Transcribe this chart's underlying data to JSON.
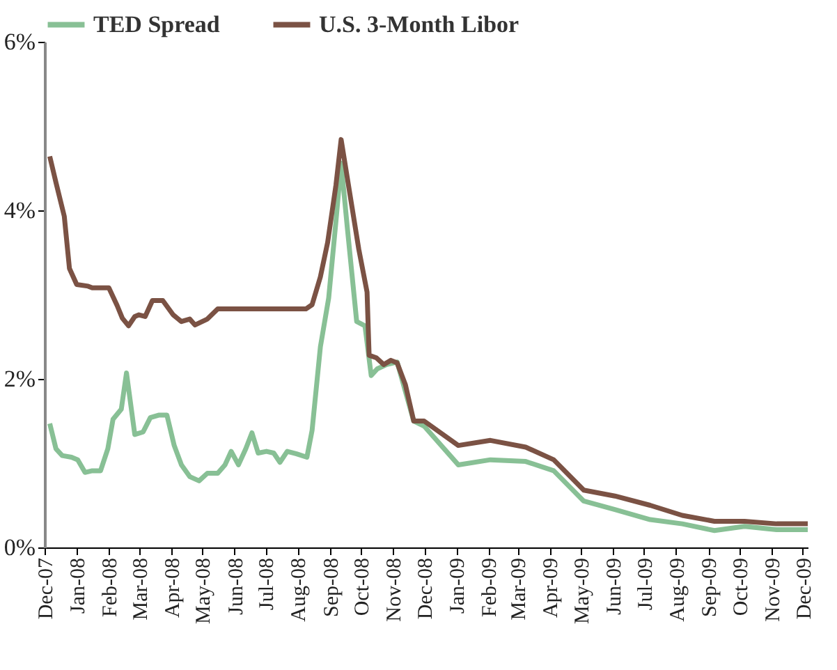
{
  "chart_data": {
    "type": "line",
    "legend": "top",
    "grid": false,
    "marker": "none",
    "line_style": "solid",
    "ylim": [
      0,
      6
    ],
    "yticks": [
      {
        "value": 0,
        "label": "0%"
      },
      {
        "value": 2,
        "label": "2%"
      },
      {
        "value": 4,
        "label": "4%"
      },
      {
        "value": 6,
        "label": "6%"
      }
    ],
    "xlim": [
      "2007-12-01",
      "2009-12-06"
    ],
    "xticks": [
      {
        "value": "2007-12-01",
        "label": "Dec-07"
      },
      {
        "value": "2008-01-01",
        "label": "Jan-08"
      },
      {
        "value": "2008-02-01",
        "label": "Feb-08"
      },
      {
        "value": "2008-03-01",
        "label": "Mar-08"
      },
      {
        "value": "2008-04-01",
        "label": "Apr-08"
      },
      {
        "value": "2008-05-01",
        "label": "May-08"
      },
      {
        "value": "2008-06-01",
        "label": "Jun-08"
      },
      {
        "value": "2008-07-01",
        "label": "Jul-08"
      },
      {
        "value": "2008-08-01",
        "label": "Aug-08"
      },
      {
        "value": "2008-09-01",
        "label": "Sep-08"
      },
      {
        "value": "2008-10-01",
        "label": "Oct-08"
      },
      {
        "value": "2008-11-01",
        "label": "Nov-08"
      },
      {
        "value": "2008-12-01",
        "label": "Dec-08"
      },
      {
        "value": "2009-01-01",
        "label": "Jan-09"
      },
      {
        "value": "2009-02-01",
        "label": "Feb-09"
      },
      {
        "value": "2009-03-01",
        "label": "Mar-09"
      },
      {
        "value": "2009-04-01",
        "label": "Apr-09"
      },
      {
        "value": "2009-05-01",
        "label": "May-09"
      },
      {
        "value": "2009-06-01",
        "label": "Jun-09"
      },
      {
        "value": "2009-07-01",
        "label": "Jul-09"
      },
      {
        "value": "2009-08-01",
        "label": "Aug-09"
      },
      {
        "value": "2009-09-01",
        "label": "Sep-09"
      },
      {
        "value": "2009-10-01",
        "label": "Oct-09"
      },
      {
        "value": "2009-11-01",
        "label": "Nov-09"
      },
      {
        "value": "2009-12-01",
        "label": "Dec-09"
      }
    ],
    "series": [
      {
        "name": "TED Spread",
        "color": "#88c095",
        "x": [
          "2007-12-06",
          "2007-12-12",
          "2007-12-18",
          "2007-12-27",
          "2008-01-02",
          "2008-01-09",
          "2008-01-16",
          "2008-01-24",
          "2008-01-31",
          "2008-02-05",
          "2008-02-13",
          "2008-02-18",
          "2008-02-26",
          "2008-03-05",
          "2008-03-12",
          "2008-03-20",
          "2008-03-28",
          "2008-04-04",
          "2008-04-11",
          "2008-04-19",
          "2008-04-28",
          "2008-05-06",
          "2008-05-16",
          "2008-05-23",
          "2008-05-29",
          "2008-06-05",
          "2008-06-12",
          "2008-06-18",
          "2008-06-24",
          "2008-07-02",
          "2008-07-09",
          "2008-07-15",
          "2008-07-22",
          "2008-07-31",
          "2008-08-10",
          "2008-08-15",
          "2008-08-23",
          "2008-08-31",
          "2008-09-07",
          "2008-09-12",
          "2008-09-18",
          "2008-09-27",
          "2008-10-05",
          "2008-10-11",
          "2008-10-17",
          "2008-10-26",
          "2008-11-05",
          "2008-11-21",
          "2008-12-01",
          "2009-01-03",
          "2009-02-03",
          "2009-03-09",
          "2009-04-05",
          "2009-05-04",
          "2009-06-03",
          "2009-07-07",
          "2009-08-07",
          "2009-09-07",
          "2009-10-06",
          "2009-11-06",
          "2009-12-06"
        ],
        "values": [
          1.47,
          1.17,
          1.09,
          1.07,
          1.04,
          0.89,
          0.91,
          0.91,
          1.17,
          1.52,
          1.64,
          2.07,
          1.34,
          1.37,
          1.54,
          1.57,
          1.57,
          1.21,
          0.98,
          0.84,
          0.79,
          0.88,
          0.88,
          0.98,
          1.14,
          0.98,
          1.17,
          1.36,
          1.12,
          1.14,
          1.12,
          1.01,
          1.14,
          1.11,
          1.07,
          1.39,
          2.38,
          2.96,
          3.87,
          4.56,
          3.79,
          2.68,
          2.63,
          2.04,
          2.12,
          2.17,
          2.2,
          1.5,
          1.44,
          0.98,
          1.04,
          1.02,
          0.91,
          0.55,
          0.45,
          0.33,
          0.28,
          0.2,
          0.25,
          0.21,
          0.21
        ]
      },
      {
        "name": "U.S. 3-Month Libor",
        "color": "#7b5244",
        "x": [
          "2007-12-06",
          "2007-12-12",
          "2007-12-20",
          "2007-12-25",
          "2008-01-01",
          "2008-01-12",
          "2008-01-16",
          "2008-02-01",
          "2008-02-09",
          "2008-02-14",
          "2008-02-20",
          "2008-02-26",
          "2008-03-01",
          "2008-03-07",
          "2008-03-14",
          "2008-03-24",
          "2008-04-03",
          "2008-04-11",
          "2008-04-19",
          "2008-04-24",
          "2008-05-06",
          "2008-05-16",
          "2008-08-09",
          "2008-08-15",
          "2008-08-23",
          "2008-08-30",
          "2008-09-07",
          "2008-09-12",
          "2008-09-29",
          "2008-10-07",
          "2008-10-09",
          "2008-10-16",
          "2008-10-23",
          "2008-10-30",
          "2008-11-05",
          "2008-11-13",
          "2008-11-21",
          "2008-12-01",
          "2009-01-03",
          "2009-02-03",
          "2009-03-09",
          "2009-04-05",
          "2009-05-04",
          "2009-06-03",
          "2009-07-07",
          "2009-08-07",
          "2009-09-07",
          "2009-10-06",
          "2009-11-06",
          "2009-12-06"
        ],
        "values": [
          4.64,
          4.33,
          3.93,
          3.31,
          3.12,
          3.1,
          3.08,
          3.08,
          2.87,
          2.72,
          2.63,
          2.74,
          2.76,
          2.74,
          2.93,
          2.93,
          2.76,
          2.68,
          2.71,
          2.64,
          2.71,
          2.83,
          2.83,
          2.88,
          3.21,
          3.62,
          4.3,
          4.84,
          3.54,
          3.03,
          2.28,
          2.25,
          2.17,
          2.22,
          2.19,
          1.93,
          1.5,
          1.5,
          1.21,
          1.27,
          1.19,
          1.04,
          0.68,
          0.61,
          0.5,
          0.38,
          0.31,
          0.31,
          0.28,
          0.28
        ]
      }
    ]
  }
}
